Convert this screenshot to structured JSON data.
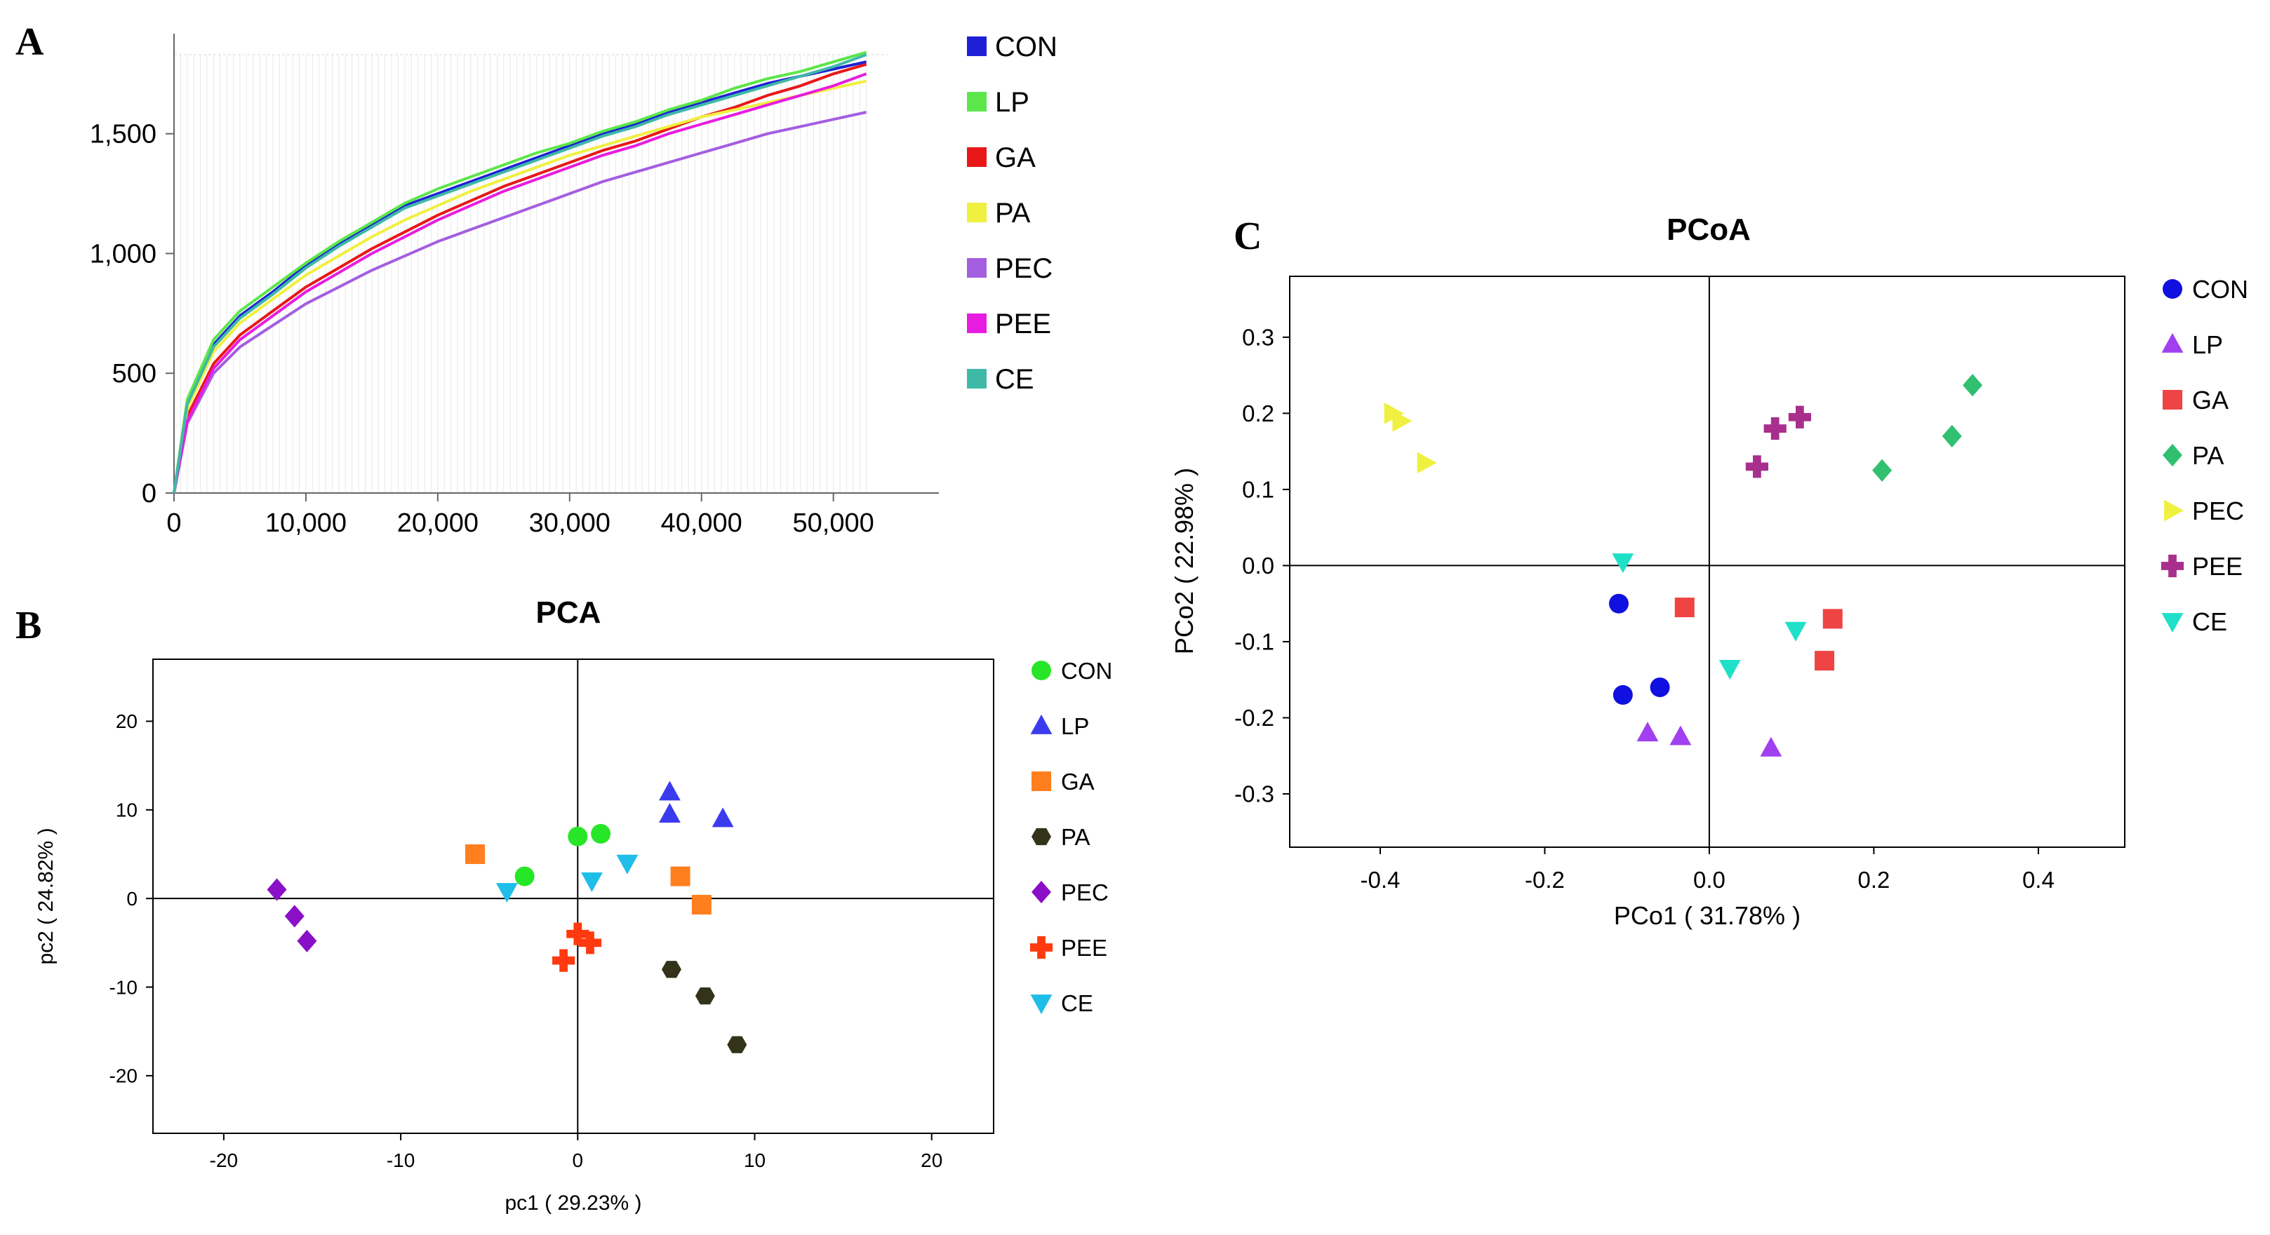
{
  "panel_labels": {
    "a": "A",
    "b": "B",
    "c": "C"
  },
  "chart_data": [
    {
      "type": "line",
      "panel": "A",
      "title": "",
      "xlabel": "",
      "ylabel": "",
      "xlim": [
        0,
        58000
      ],
      "ylim": [
        0,
        1830
      ],
      "xticks": [
        0,
        10000,
        20000,
        30000,
        40000,
        50000
      ],
      "xtick_labels": [
        "0",
        "10,000",
        "20,000",
        "30,000",
        "40,000",
        "50,000"
      ],
      "yticks": [
        0,
        500,
        1000,
        1500
      ],
      "ytick_labels": [
        "0",
        "500",
        "1,000",
        "1,500"
      ],
      "legend": "right",
      "x": [
        0,
        1000,
        3000,
        5000,
        7500,
        10000,
        12500,
        15000,
        17500,
        20000,
        22500,
        25000,
        27500,
        30000,
        32500,
        35000,
        37500,
        40000,
        42500,
        45000,
        47500,
        50000,
        52500
      ],
      "series": [
        {
          "name": "CON",
          "color": "#1f1fd6",
          "values": [
            0,
            380,
            620,
            740,
            840,
            950,
            1040,
            1120,
            1200,
            1250,
            1300,
            1350,
            1400,
            1450,
            1500,
            1540,
            1590,
            1630,
            1670,
            1710,
            1740,
            1770,
            1800
          ]
        },
        {
          "name": "LP",
          "color": "#5ce64a",
          "values": [
            0,
            390,
            640,
            760,
            860,
            960,
            1050,
            1130,
            1210,
            1270,
            1320,
            1370,
            1420,
            1460,
            1510,
            1550,
            1600,
            1640,
            1690,
            1730,
            1760,
            1800,
            1840
          ]
        },
        {
          "name": "GA",
          "color": "#e81818",
          "values": [
            0,
            320,
            540,
            660,
            760,
            860,
            940,
            1020,
            1090,
            1160,
            1220,
            1280,
            1330,
            1380,
            1430,
            1470,
            1520,
            1570,
            1610,
            1660,
            1700,
            1750,
            1790
          ]
        },
        {
          "name": "PA",
          "color": "#f0f040",
          "values": [
            0,
            350,
            590,
            710,
            810,
            910,
            990,
            1070,
            1140,
            1200,
            1260,
            1310,
            1360,
            1410,
            1450,
            1490,
            1530,
            1570,
            1600,
            1630,
            1660,
            1690,
            1720
          ]
        },
        {
          "name": "PEC",
          "color": "#a45ee0",
          "values": [
            0,
            290,
            500,
            610,
            700,
            790,
            860,
            930,
            990,
            1050,
            1100,
            1150,
            1200,
            1250,
            1300,
            1340,
            1380,
            1420,
            1460,
            1500,
            1530,
            1560,
            1590
          ]
        },
        {
          "name": "PEE",
          "color": "#e81ce0",
          "values": [
            0,
            300,
            520,
            640,
            740,
            840,
            920,
            1000,
            1070,
            1140,
            1200,
            1260,
            1310,
            1360,
            1410,
            1450,
            1500,
            1540,
            1580,
            1620,
            1660,
            1700,
            1750
          ]
        },
        {
          "name": "CE",
          "color": "#3fb8a8",
          "values": [
            0,
            370,
            610,
            730,
            830,
            940,
            1030,
            1110,
            1190,
            1240,
            1290,
            1340,
            1390,
            1440,
            1490,
            1530,
            1580,
            1620,
            1660,
            1700,
            1740,
            1780,
            1830
          ]
        }
      ]
    },
    {
      "type": "scatter",
      "panel": "B",
      "title": "PCA",
      "xlabel": "pc1 ( 29.23% )",
      "ylabel": "pc2 ( 24.82% )",
      "xlim": [
        -24,
        23.5
      ],
      "ylim": [
        -26.5,
        27
      ],
      "xticks": [
        -20,
        -10,
        0,
        10,
        20
      ],
      "yticks": [
        20,
        10,
        0,
        -10,
        -20
      ],
      "legend": "right",
      "series": [
        {
          "name": "CON",
          "color": "#27e627",
          "marker": "circle",
          "points": [
            [
              -3,
              2.5
            ],
            [
              0,
              7
            ],
            [
              1.3,
              7.3
            ]
          ]
        },
        {
          "name": "LP",
          "color": "#3b3bee",
          "marker": "triangle-up",
          "points": [
            [
              5.2,
              12
            ],
            [
              5.2,
              9.5
            ],
            [
              8.2,
              9
            ]
          ]
        },
        {
          "name": "GA",
          "color": "#ff7f1e",
          "marker": "square",
          "points": [
            [
              -5.8,
              5
            ],
            [
              5.8,
              2.5
            ],
            [
              7,
              -0.7
            ]
          ]
        },
        {
          "name": "PA",
          "color": "#33331a",
          "marker": "hexagon",
          "points": [
            [
              5.3,
              -8
            ],
            [
              7.2,
              -11
            ],
            [
              9,
              -16.5
            ]
          ]
        },
        {
          "name": "PEC",
          "color": "#8a10c8",
          "marker": "diamond",
          "points": [
            [
              -17,
              1
            ],
            [
              -16,
              -2
            ],
            [
              -15.3,
              -4.8
            ]
          ]
        },
        {
          "name": "PEE",
          "color": "#ff3a10",
          "marker": "plus",
          "points": [
            [
              0,
              -4
            ],
            [
              -0.8,
              -7
            ],
            [
              0.7,
              -5
            ]
          ]
        },
        {
          "name": "CE",
          "color": "#1ebee8",
          "marker": "triangle-down",
          "points": [
            [
              -4,
              0.8
            ],
            [
              0.8,
              2
            ],
            [
              2.8,
              4
            ]
          ]
        }
      ]
    },
    {
      "type": "scatter",
      "panel": "C",
      "title": "PCoA",
      "xlabel": "PCo1 ( 31.78% )",
      "ylabel": "PCo2 ( 22.98% )",
      "xlim": [
        -0.51,
        0.505
      ],
      "ylim": [
        -0.37,
        0.38
      ],
      "xticks": [
        -0.4,
        -0.2,
        0.0,
        0.2,
        0.4
      ],
      "xtick_labels": [
        "-0.4",
        "-0.2",
        "0.0",
        "0.2",
        "0.4"
      ],
      "yticks": [
        0.3,
        0.2,
        0.1,
        0.0,
        -0.1,
        -0.2,
        -0.3
      ],
      "ytick_labels": [
        "0.3",
        "0.2",
        "0.1",
        "0.0",
        "-0.1",
        "-0.2",
        "-0.3"
      ],
      "legend": "right",
      "series": [
        {
          "name": "CON",
          "color": "#1010e0",
          "marker": "circle",
          "points": [
            [
              -0.11,
              -0.05
            ],
            [
              -0.105,
              -0.17
            ],
            [
              -0.06,
              -0.16
            ]
          ]
        },
        {
          "name": "LP",
          "color": "#a040f0",
          "marker": "triangle-up",
          "points": [
            [
              -0.075,
              -0.22
            ],
            [
              -0.035,
              -0.225
            ],
            [
              0.075,
              -0.24
            ]
          ]
        },
        {
          "name": "GA",
          "color": "#ee4444",
          "marker": "square",
          "points": [
            [
              -0.03,
              -0.055
            ],
            [
              0.15,
              -0.07
            ],
            [
              0.14,
              -0.125
            ]
          ]
        },
        {
          "name": "PA",
          "color": "#30c070",
          "marker": "diamond",
          "points": [
            [
              0.21,
              0.125
            ],
            [
              0.295,
              0.17
            ],
            [
              0.32,
              0.237
            ]
          ]
        },
        {
          "name": "PEC",
          "color": "#f0f040",
          "marker": "triangle-right",
          "points": [
            [
              -0.385,
              0.2
            ],
            [
              -0.375,
              0.19
            ],
            [
              -0.345,
              0.135
            ]
          ]
        },
        {
          "name": "PEE",
          "color": "#a8308c",
          "marker": "plus",
          "points": [
            [
              0.058,
              0.13
            ],
            [
              0.08,
              0.18
            ],
            [
              0.11,
              0.195
            ]
          ]
        },
        {
          "name": "CE",
          "color": "#20e0c8",
          "marker": "triangle-down",
          "points": [
            [
              -0.105,
              0.005
            ],
            [
              0.025,
              -0.135
            ],
            [
              0.105,
              -0.085
            ]
          ]
        }
      ]
    }
  ]
}
